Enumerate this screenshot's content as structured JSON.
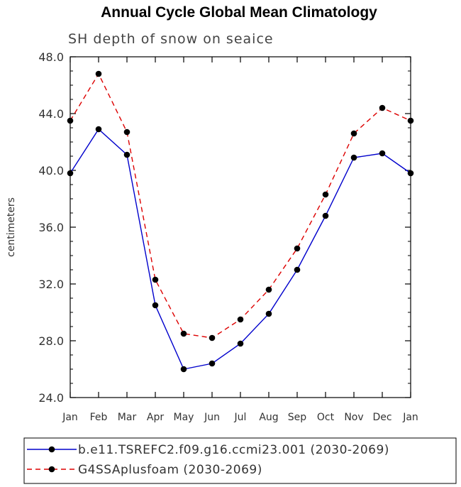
{
  "chart_data": {
    "type": "line",
    "title": "Annual Cycle Global Mean Climatology",
    "subtitle": "SH depth of snow on seaice",
    "xlabel": "",
    "ylabel": "centimeters",
    "ylim": [
      24.0,
      48.0
    ],
    "yticks": [
      "24.0",
      "28.0",
      "32.0",
      "36.0",
      "40.0",
      "44.0",
      "48.0"
    ],
    "categories": [
      "Jan",
      "Feb",
      "Mar",
      "Apr",
      "May",
      "Jun",
      "Jul",
      "Aug",
      "Sep",
      "Oct",
      "Nov",
      "Dec",
      "Jan"
    ],
    "series": [
      {
        "name": "b.e11.TSREFC2.f09.g16.ccmi23.001 (2030-2069)",
        "color": "#0000cc",
        "dash": "solid",
        "values": [
          39.8,
          42.9,
          41.1,
          30.5,
          26.0,
          26.4,
          27.8,
          29.9,
          33.0,
          36.8,
          40.9,
          41.2,
          39.8
        ]
      },
      {
        "name": "G4SSAplusfoam (2030-2069)",
        "color": "#dd0000",
        "dash": "dashed",
        "values": [
          43.5,
          46.8,
          42.7,
          32.3,
          28.5,
          28.2,
          29.5,
          31.6,
          34.5,
          38.3,
          42.6,
          44.4,
          43.5
        ]
      }
    ],
    "grid": false,
    "legend": "bottom"
  }
}
